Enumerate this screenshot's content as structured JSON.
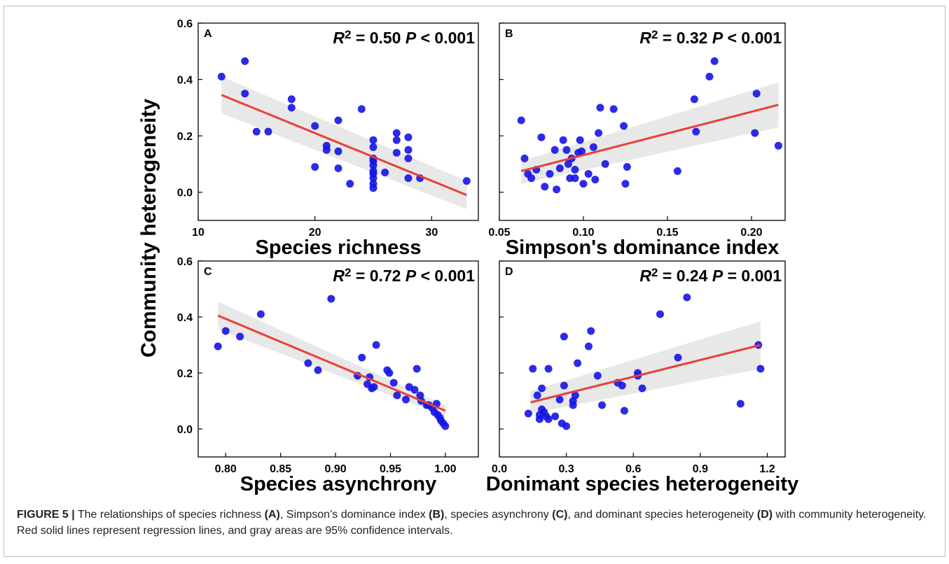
{
  "figure": {
    "ylabel": "Community heterogeneity",
    "caption": {
      "fig_label": "FIGURE 5 |",
      "t1": " The relationships of species richness ",
      "a": "(A)",
      "t2": ", Simpson’s dominance index ",
      "b": "(B)",
      "t3": ", species asynchrony ",
      "c": "(C)",
      "t4": ", and dominant species heterogeneity ",
      "d": "(D)",
      "t5": " with community heterogeneity. Red solid lines represent regression lines, and gray areas are 95% confidence intervals."
    }
  },
  "colors": {
    "point": "#1414e6",
    "line": "#e8403a",
    "band": "#e6e6e6"
  },
  "chart_data": [
    {
      "type": "scatter",
      "panel": "A",
      "xlabel": "Species richness",
      "xlim": [
        10,
        34
      ],
      "xticks": [
        10,
        20,
        30
      ],
      "ylim": [
        -0.1,
        0.6
      ],
      "yticks": [
        0.0,
        0.2,
        0.4,
        0.6
      ],
      "r2_label": "= 0.50",
      "p_label": "< 0.001",
      "fit": {
        "x": [
          12,
          33
        ],
        "y": [
          0.345,
          -0.01
        ],
        "band_upper": [
          0.41,
          0.04
        ],
        "band_lower": [
          0.28,
          -0.06
        ]
      },
      "points": [
        [
          12,
          0.41
        ],
        [
          14,
          0.465
        ],
        [
          14,
          0.35
        ],
        [
          15,
          0.215
        ],
        [
          16,
          0.215
        ],
        [
          18,
          0.33
        ],
        [
          18,
          0.3
        ],
        [
          20,
          0.235
        ],
        [
          20,
          0.09
        ],
        [
          21,
          0.165
        ],
        [
          21,
          0.15
        ],
        [
          22,
          0.255
        ],
        [
          22,
          0.145
        ],
        [
          22,
          0.085
        ],
        [
          23,
          0.03
        ],
        [
          24,
          0.295
        ],
        [
          25,
          0.185
        ],
        [
          25,
          0.16
        ],
        [
          25,
          0.12
        ],
        [
          25,
          0.11
        ],
        [
          25,
          0.095
        ],
        [
          25,
          0.075
        ],
        [
          25,
          0.065
        ],
        [
          25,
          0.05
        ],
        [
          25,
          0.03
        ],
        [
          25,
          0.015
        ],
        [
          26,
          0.07
        ],
        [
          27,
          0.21
        ],
        [
          27,
          0.185
        ],
        [
          27,
          0.14
        ],
        [
          28,
          0.195
        ],
        [
          28,
          0.15
        ],
        [
          28,
          0.12
        ],
        [
          28,
          0.05
        ],
        [
          29,
          0.05
        ],
        [
          33,
          0.04
        ]
      ]
    },
    {
      "type": "scatter",
      "panel": "B",
      "xlabel": "Simpson's dominance index",
      "xlim": [
        0.05,
        0.22
      ],
      "xticks": [
        0.05,
        0.1,
        0.15,
        0.2
      ],
      "ylim": [
        -0.1,
        0.6
      ],
      "yticks": [
        0.0,
        0.2,
        0.4,
        0.6
      ],
      "r2_label": "= 0.32",
      "p_label": "< 0.001",
      "fit": {
        "x": [
          0.063,
          0.216
        ],
        "y": [
          0.075,
          0.31
        ],
        "band_upper": [
          0.11,
          0.39
        ],
        "band_lower": [
          0.03,
          0.23
        ]
      },
      "points": [
        [
          0.063,
          0.255
        ],
        [
          0.065,
          0.12
        ],
        [
          0.067,
          0.065
        ],
        [
          0.069,
          0.05
        ],
        [
          0.072,
          0.08
        ],
        [
          0.075,
          0.195
        ],
        [
          0.077,
          0.02
        ],
        [
          0.08,
          0.065
        ],
        [
          0.083,
          0.15
        ],
        [
          0.084,
          0.01
        ],
        [
          0.086,
          0.085
        ],
        [
          0.088,
          0.185
        ],
        [
          0.09,
          0.15
        ],
        [
          0.091,
          0.1
        ],
        [
          0.092,
          0.05
        ],
        [
          0.093,
          0.12
        ],
        [
          0.095,
          0.08
        ],
        [
          0.095,
          0.05
        ],
        [
          0.097,
          0.14
        ],
        [
          0.098,
          0.185
        ],
        [
          0.099,
          0.145
        ],
        [
          0.1,
          0.03
        ],
        [
          0.103,
          0.065
        ],
        [
          0.106,
          0.16
        ],
        [
          0.107,
          0.045
        ],
        [
          0.109,
          0.21
        ],
        [
          0.11,
          0.3
        ],
        [
          0.113,
          0.1
        ],
        [
          0.118,
          0.295
        ],
        [
          0.124,
          0.235
        ],
        [
          0.125,
          0.03
        ],
        [
          0.126,
          0.09
        ],
        [
          0.156,
          0.075
        ],
        [
          0.166,
          0.33
        ],
        [
          0.167,
          0.215
        ],
        [
          0.175,
          0.41
        ],
        [
          0.178,
          0.465
        ],
        [
          0.202,
          0.21
        ],
        [
          0.203,
          0.35
        ],
        [
          0.216,
          0.165
        ]
      ]
    },
    {
      "type": "scatter",
      "panel": "C",
      "xlabel": "Species asynchrony",
      "xlim": [
        0.775,
        1.03
      ],
      "xticks": [
        0.8,
        0.85,
        0.9,
        0.95,
        1.0
      ],
      "ylim": [
        -0.1,
        0.6
      ],
      "yticks": [
        0.0,
        0.2,
        0.4,
        0.6
      ],
      "r2_label": "= 0.72",
      "p_label": "< 0.001",
      "fit": {
        "x": [
          0.793,
          1.0
        ],
        "y": [
          0.405,
          0.065
        ],
        "band_upper": [
          0.455,
          0.085
        ],
        "band_lower": [
          0.355,
          0.045
        ]
      },
      "points": [
        [
          0.793,
          0.295
        ],
        [
          0.8,
          0.35
        ],
        [
          0.813,
          0.33
        ],
        [
          0.832,
          0.41
        ],
        [
          0.875,
          0.235
        ],
        [
          0.884,
          0.21
        ],
        [
          0.896,
          0.465
        ],
        [
          0.92,
          0.19
        ],
        [
          0.924,
          0.255
        ],
        [
          0.929,
          0.16
        ],
        [
          0.931,
          0.185
        ],
        [
          0.933,
          0.145
        ],
        [
          0.935,
          0.15
        ],
        [
          0.937,
          0.3
        ],
        [
          0.947,
          0.21
        ],
        [
          0.949,
          0.2
        ],
        [
          0.953,
          0.165
        ],
        [
          0.956,
          0.12
        ],
        [
          0.964,
          0.105
        ],
        [
          0.967,
          0.15
        ],
        [
          0.972,
          0.14
        ],
        [
          0.974,
          0.215
        ],
        [
          0.977,
          0.12
        ],
        [
          0.978,
          0.1
        ],
        [
          0.983,
          0.085
        ],
        [
          0.985,
          0.085
        ],
        [
          0.988,
          0.075
        ],
        [
          0.99,
          0.06
        ],
        [
          0.992,
          0.09
        ],
        [
          0.993,
          0.05
        ],
        [
          0.995,
          0.04
        ],
        [
          0.996,
          0.03
        ],
        [
          0.998,
          0.02
        ],
        [
          1.0,
          0.01
        ]
      ]
    },
    {
      "type": "scatter",
      "panel": "D",
      "xlabel": "Donimant species heterogeneity",
      "xlim": [
        0.0,
        1.28
      ],
      "xticks": [
        0.0,
        0.3,
        0.6,
        0.9,
        1.2
      ],
      "ylim": [
        -0.1,
        0.6
      ],
      "yticks": [
        0.0,
        0.2,
        0.4,
        0.6
      ],
      "r2_label": "= 0.24",
      "p_label": "= 0.001",
      "fit": {
        "x": [
          0.14,
          1.17
        ],
        "y": [
          0.095,
          0.3
        ],
        "band_upper": [
          0.135,
          0.385
        ],
        "band_lower": [
          0.055,
          0.215
        ]
      },
      "points": [
        [
          0.13,
          0.055
        ],
        [
          0.15,
          0.215
        ],
        [
          0.17,
          0.12
        ],
        [
          0.18,
          0.05
        ],
        [
          0.18,
          0.035
        ],
        [
          0.19,
          0.07
        ],
        [
          0.19,
          0.145
        ],
        [
          0.2,
          0.06
        ],
        [
          0.21,
          0.045
        ],
        [
          0.22,
          0.035
        ],
        [
          0.22,
          0.215
        ],
        [
          0.25,
          0.045
        ],
        [
          0.27,
          0.105
        ],
        [
          0.28,
          0.02
        ],
        [
          0.29,
          0.33
        ],
        [
          0.29,
          0.155
        ],
        [
          0.3,
          0.01
        ],
        [
          0.33,
          0.1
        ],
        [
          0.33,
          0.085
        ],
        [
          0.34,
          0.12
        ],
        [
          0.35,
          0.235
        ],
        [
          0.4,
          0.295
        ],
        [
          0.41,
          0.35
        ],
        [
          0.44,
          0.19
        ],
        [
          0.46,
          0.085
        ],
        [
          0.53,
          0.165
        ],
        [
          0.55,
          0.155
        ],
        [
          0.56,
          0.065
        ],
        [
          0.62,
          0.19
        ],
        [
          0.62,
          0.2
        ],
        [
          0.64,
          0.145
        ],
        [
          0.72,
          0.41
        ],
        [
          0.8,
          0.255
        ],
        [
          0.84,
          0.47
        ],
        [
          1.08,
          0.09
        ],
        [
          1.16,
          0.3
        ],
        [
          1.17,
          0.215
        ]
      ]
    }
  ]
}
